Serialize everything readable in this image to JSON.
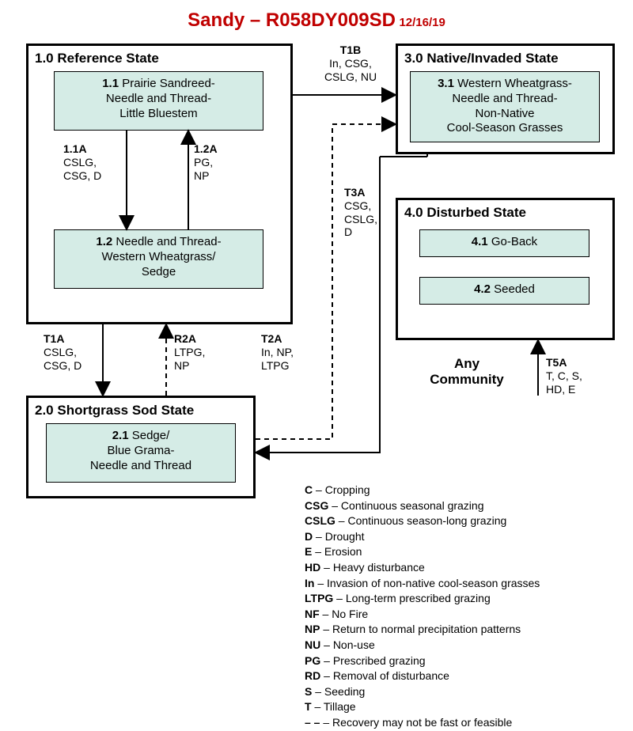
{
  "title": {
    "main": "Sandy – R058DY009SD",
    "date": "12/16/19"
  },
  "states": {
    "s1": {
      "title": "1.0 Reference State"
    },
    "s2": {
      "title": "2.0 Shortgrass Sod State"
    },
    "s3": {
      "title": "3.0 Native/Invaded State"
    },
    "s4": {
      "title": "4.0 Disturbed State"
    }
  },
  "communities": {
    "c11": {
      "num": "1.1",
      "text": " Prairie Sandreed-\nNeedle and Thread-\nLittle Bluestem"
    },
    "c12": {
      "num": "1.2",
      "text": " Needle and Thread-\nWestern Wheatgrass/\nSedge"
    },
    "c21": {
      "num": "2.1",
      "text": " Sedge/\nBlue Grama-\nNeedle and Thread"
    },
    "c31": {
      "num": "3.1",
      "text": " Western Wheatgrass-\nNeedle and Thread-\nNon-Native\nCool-Season Grasses"
    },
    "c41": {
      "num": "4.1",
      "text": " Go-Back"
    },
    "c42": {
      "num": "4.2",
      "text": " Seeded"
    }
  },
  "transitions": {
    "t11a": {
      "code": "1.1A",
      "drivers": "CSLG,\nCSG, D"
    },
    "t12a": {
      "code": "1.2A",
      "drivers": "PG,\nNP"
    },
    "t1a": {
      "code": "T1A",
      "drivers": "CSLG,\nCSG, D"
    },
    "r2a": {
      "code": "R2A",
      "drivers": "LTPG,\nNP"
    },
    "t1b": {
      "code": "T1B",
      "drivers": "In, CSG,\nCSLG, NU"
    },
    "t2a": {
      "code": "T2A",
      "drivers": "In, NP,\nLTPG"
    },
    "t3a": {
      "code": "T3A",
      "drivers": "CSG,\nCSLG,\nD"
    },
    "t5a": {
      "code": "T5A",
      "drivers": "T, C, S,\nHD, E"
    }
  },
  "any_community": "Any\nCommunity",
  "legend": [
    {
      "k": "C",
      "v": "Cropping"
    },
    {
      "k": "CSG",
      "v": "Continuous seasonal grazing"
    },
    {
      "k": "CSLG",
      "v": "Continuous season-long grazing"
    },
    {
      "k": "D",
      "v": "Drought"
    },
    {
      "k": "E",
      "v": "Erosion"
    },
    {
      "k": "HD",
      "v": "Heavy disturbance"
    },
    {
      "k": "In",
      "v": "Invasion of non-native cool-season grasses"
    },
    {
      "k": "LTPG",
      "v": "Long-term prescribed grazing"
    },
    {
      "k": "NF",
      "v": "No Fire"
    },
    {
      "k": "NP",
      "v": "Return to normal precipitation patterns"
    },
    {
      "k": "NU",
      "v": "Non-use"
    },
    {
      "k": "PG",
      "v": "Prescribed grazing"
    },
    {
      "k": "RD",
      "v": "Removal of disturbance"
    },
    {
      "k": "S",
      "v": "Seeding"
    },
    {
      "k": "T",
      "v": "Tillage"
    }
  ],
  "legend_dash": "Recovery may not be fast or feasible",
  "colors": {
    "title": "#c00000",
    "community_bg": "#d5ece6",
    "border": "#000000",
    "bg": "#ffffff"
  }
}
